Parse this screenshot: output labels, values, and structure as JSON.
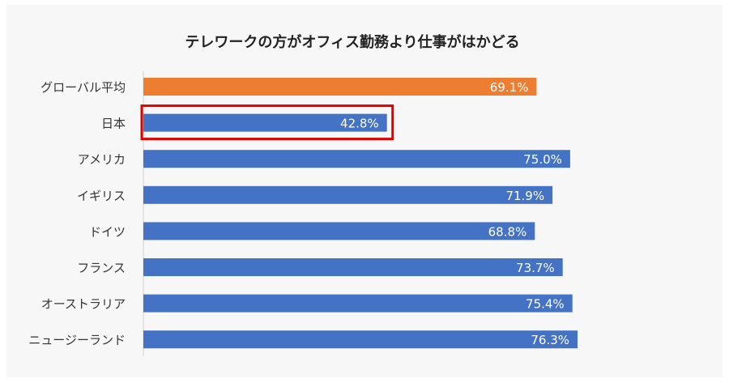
{
  "chart_data": {
    "type": "bar",
    "orientation": "horizontal",
    "title": "テレワークの方がオフィス勤務より仕事がはかどる",
    "categories": [
      "グローバル平均",
      "日本",
      "アメリカ",
      "イギリス",
      "ドイツ",
      "フランス",
      "オーストラリア",
      "ニュージーランド"
    ],
    "values": [
      69.1,
      42.8,
      75.0,
      71.9,
      68.8,
      73.7,
      75.4,
      76.3
    ],
    "value_labels": [
      "69.1%",
      "42.8%",
      "75.0%",
      "71.9%",
      "68.8%",
      "73.7%",
      "75.4%",
      "76.3%"
    ],
    "unit": "%",
    "xlim": [
      0,
      100
    ],
    "grid": false,
    "legend": "none",
    "highlight_index": 1,
    "colors": {
      "bar": "#4472c4",
      "bar_global": "#ed7d31",
      "highlight_box": "#e00000",
      "value_label": "#ffffff",
      "category_label": "#333333",
      "axis": "#d0d0d0",
      "background": "#f7f7f7"
    }
  }
}
